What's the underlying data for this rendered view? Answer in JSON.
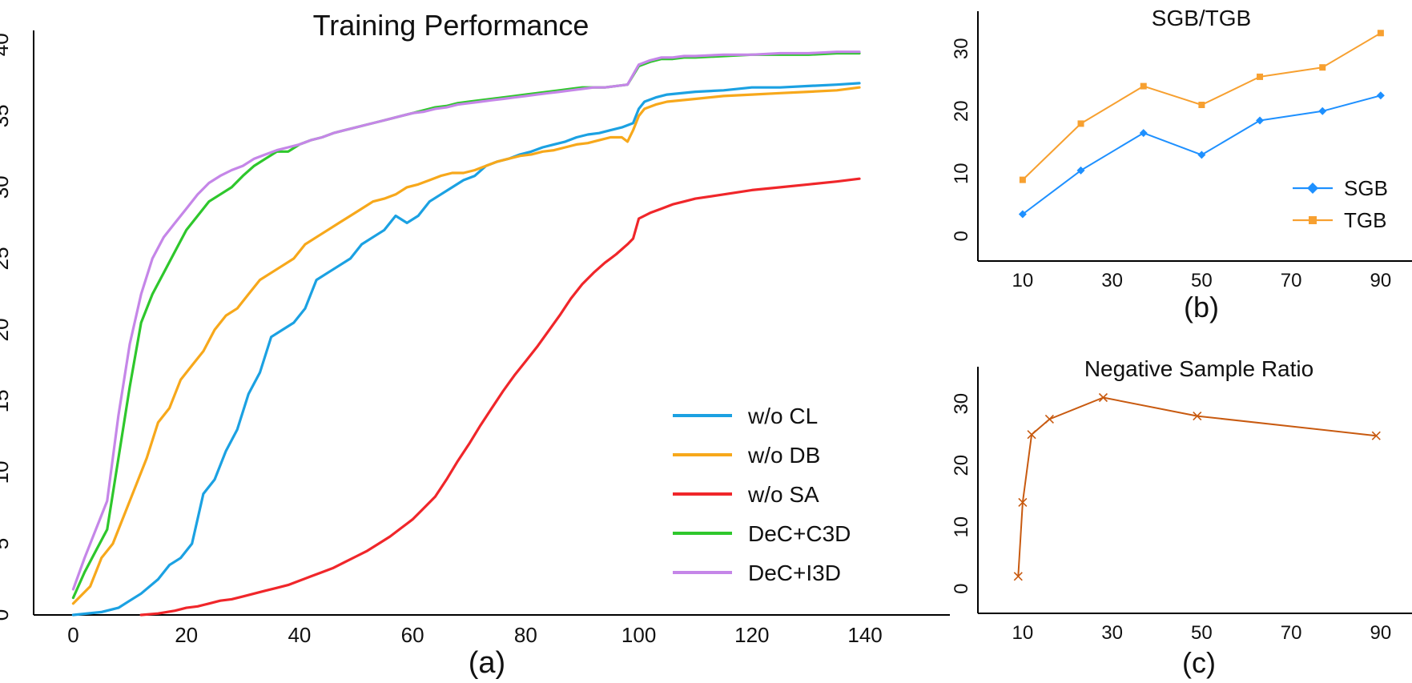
{
  "chart_data": [
    {
      "id": "a",
      "type": "line",
      "title": "Training Performance",
      "caption": "(a)",
      "xlabel": "",
      "ylabel": "",
      "xlim": [
        -7,
        155
      ],
      "ylim": [
        0,
        41
      ],
      "xticks": [
        0,
        20,
        40,
        60,
        80,
        100,
        120,
        140
      ],
      "yticks": [
        0,
        5,
        10,
        15,
        20,
        25,
        30,
        35,
        40
      ],
      "grid": false,
      "legend": "bottom-right",
      "series": [
        {
          "name": "w/o CL",
          "color": "#1ba1e2",
          "x": [
            0,
            5,
            8,
            10,
            12,
            15,
            17,
            19,
            21,
            23,
            25,
            27,
            29,
            31,
            33,
            35,
            37,
            39,
            41,
            43,
            45,
            47,
            49,
            51,
            53,
            55,
            57,
            59,
            61,
            63,
            65,
            67,
            69,
            71,
            73,
            75,
            77,
            79,
            81,
            83,
            85,
            87,
            89,
            91,
            93,
            95,
            97,
            99,
            100,
            101,
            103,
            105,
            110,
            115,
            120,
            125,
            130,
            135,
            139
          ],
          "y": [
            0,
            0.2,
            0.5,
            1,
            1.5,
            2.5,
            3.5,
            4,
            5,
            8.5,
            9.5,
            11.5,
            13,
            15.5,
            17,
            19.5,
            20,
            20.5,
            21.5,
            23.5,
            24,
            24.5,
            25,
            26,
            26.5,
            27,
            28,
            27.5,
            28,
            29,
            29.5,
            30,
            30.5,
            30.8,
            31.5,
            31.8,
            32,
            32.3,
            32.5,
            32.8,
            33,
            33.2,
            33.5,
            33.7,
            33.8,
            34,
            34.2,
            34.5,
            35.5,
            36,
            36.3,
            36.5,
            36.7,
            36.8,
            37,
            37,
            37.1,
            37.2,
            37.3
          ]
        },
        {
          "name": "w/o DB",
          "color": "#f7a81b",
          "x": [
            0,
            3,
            5,
            7,
            9,
            11,
            13,
            15,
            17,
            19,
            21,
            23,
            25,
            27,
            29,
            31,
            33,
            35,
            37,
            39,
            41,
            43,
            45,
            47,
            49,
            51,
            53,
            55,
            57,
            59,
            61,
            63,
            65,
            67,
            69,
            71,
            73,
            75,
            77,
            79,
            81,
            83,
            85,
            87,
            89,
            91,
            93,
            95,
            97,
            98,
            99,
            100,
            101,
            103,
            105,
            110,
            115,
            120,
            125,
            130,
            135,
            139
          ],
          "y": [
            0.8,
            2,
            4,
            5,
            7,
            9,
            11,
            13.5,
            14.5,
            16.5,
            17.5,
            18.5,
            20,
            21,
            21.5,
            22.5,
            23.5,
            24,
            24.5,
            25,
            26,
            26.5,
            27,
            27.5,
            28,
            28.5,
            29,
            29.2,
            29.5,
            30,
            30.2,
            30.5,
            30.8,
            31,
            31,
            31.2,
            31.5,
            31.8,
            32,
            32.2,
            32.3,
            32.5,
            32.6,
            32.8,
            33,
            33.1,
            33.3,
            33.5,
            33.5,
            33.2,
            34,
            35,
            35.5,
            35.8,
            36,
            36.2,
            36.4,
            36.5,
            36.6,
            36.7,
            36.8,
            37
          ]
        },
        {
          "name": "w/o SA",
          "color": "#f0262a",
          "x": [
            12,
            15,
            18,
            20,
            22,
            24,
            26,
            28,
            30,
            32,
            34,
            36,
            38,
            40,
            42,
            44,
            46,
            48,
            50,
            52,
            54,
            56,
            58,
            60,
            62,
            64,
            66,
            68,
            70,
            72,
            74,
            76,
            78,
            80,
            82,
            84,
            86,
            88,
            90,
            92,
            94,
            96,
            98,
            99,
            100,
            102,
            104,
            106,
            108,
            110,
            115,
            120,
            125,
            130,
            135,
            139
          ],
          "y": [
            0,
            0.1,
            0.3,
            0.5,
            0.6,
            0.8,
            1,
            1.1,
            1.3,
            1.5,
            1.7,
            1.9,
            2.1,
            2.4,
            2.7,
            3,
            3.3,
            3.7,
            4.1,
            4.5,
            5,
            5.5,
            6.1,
            6.7,
            7.5,
            8.3,
            9.5,
            10.8,
            12,
            13.3,
            14.5,
            15.7,
            16.8,
            17.8,
            18.8,
            19.9,
            21,
            22.2,
            23.2,
            24,
            24.7,
            25.3,
            26,
            26.4,
            27.8,
            28.2,
            28.5,
            28.8,
            29,
            29.2,
            29.5,
            29.8,
            30,
            30.2,
            30.4,
            30.6
          ]
        },
        {
          "name": "DeC+C3D",
          "color": "#2ec72c",
          "x": [
            0,
            2,
            4,
            6,
            8,
            10,
            12,
            14,
            16,
            18,
            20,
            22,
            24,
            26,
            28,
            30,
            32,
            34,
            36,
            38,
            40,
            42,
            44,
            46,
            48,
            50,
            52,
            54,
            56,
            58,
            60,
            62,
            64,
            66,
            68,
            70,
            72,
            74,
            76,
            78,
            80,
            82,
            84,
            86,
            88,
            90,
            92,
            94,
            96,
            98,
            100,
            102,
            104,
            106,
            108,
            110,
            115,
            120,
            125,
            130,
            135,
            139
          ],
          "y": [
            1.2,
            3,
            4.5,
            6,
            11,
            16,
            20.5,
            22.5,
            24,
            25.5,
            27,
            28,
            29,
            29.5,
            30,
            30.8,
            31.5,
            32,
            32.5,
            32.5,
            33,
            33.3,
            33.5,
            33.8,
            34,
            34.2,
            34.4,
            34.6,
            34.8,
            35,
            35.2,
            35.4,
            35.6,
            35.7,
            35.9,
            36,
            36.1,
            36.2,
            36.3,
            36.4,
            36.5,
            36.6,
            36.7,
            36.8,
            36.9,
            37,
            37,
            37,
            37.1,
            37.2,
            38.5,
            38.8,
            39,
            39,
            39.1,
            39.1,
            39.2,
            39.3,
            39.3,
            39.3,
            39.4,
            39.4
          ]
        },
        {
          "name": "DeC+I3D",
          "color": "#c586e8",
          "x": [
            0,
            2,
            4,
            6,
            8,
            10,
            12,
            14,
            16,
            18,
            20,
            22,
            24,
            26,
            28,
            30,
            32,
            34,
            36,
            38,
            40,
            42,
            44,
            46,
            48,
            50,
            52,
            54,
            56,
            58,
            60,
            62,
            64,
            66,
            68,
            70,
            72,
            74,
            76,
            78,
            80,
            82,
            84,
            86,
            88,
            90,
            92,
            94,
            96,
            98,
            100,
            102,
            104,
            106,
            108,
            110,
            115,
            120,
            125,
            130,
            135,
            139
          ],
          "y": [
            1.8,
            4,
            6,
            8,
            14,
            19,
            22.5,
            25,
            26.5,
            27.5,
            28.5,
            29.5,
            30.3,
            30.8,
            31.2,
            31.5,
            32,
            32.3,
            32.6,
            32.8,
            33,
            33.3,
            33.5,
            33.8,
            34,
            34.2,
            34.4,
            34.6,
            34.8,
            35,
            35.2,
            35.3,
            35.5,
            35.6,
            35.8,
            35.9,
            36,
            36.1,
            36.2,
            36.3,
            36.4,
            36.5,
            36.6,
            36.7,
            36.8,
            36.9,
            37,
            37,
            37.1,
            37.2,
            38.6,
            38.9,
            39.1,
            39.1,
            39.2,
            39.2,
            39.3,
            39.3,
            39.4,
            39.4,
            39.5,
            39.5
          ]
        }
      ]
    },
    {
      "id": "b",
      "type": "line",
      "title": "SGB/TGB",
      "caption": "(b)",
      "xlabel": "",
      "ylabel": "",
      "xlim": [
        0,
        97
      ],
      "ylim": [
        -4,
        36
      ],
      "xticks": [
        10,
        30,
        50,
        70,
        90
      ],
      "yticks": [
        0,
        10,
        20,
        30
      ],
      "grid": false,
      "legend": "right",
      "series": [
        {
          "name": "SGB",
          "color": "#1e90ff",
          "marker": "diamond",
          "x": [
            10,
            23,
            37,
            50,
            63,
            77,
            90
          ],
          "y": [
            3.5,
            10.5,
            16.5,
            13,
            18.5,
            20,
            22.5
          ]
        },
        {
          "name": "TGB",
          "color": "#f7a030",
          "marker": "square",
          "x": [
            10,
            23,
            37,
            50,
            63,
            77,
            90
          ],
          "y": [
            9,
            18,
            24,
            21,
            25.5,
            27,
            32.5
          ]
        }
      ]
    },
    {
      "id": "c",
      "type": "line",
      "title": "Negative Sample Ratio",
      "caption": "(c)",
      "xlabel": "",
      "ylabel": "",
      "xlim": [
        0,
        97
      ],
      "ylim": [
        -4,
        36
      ],
      "xticks": [
        10,
        30,
        50,
        70,
        90
      ],
      "yticks": [
        0,
        10,
        20,
        30
      ],
      "grid": false,
      "legend": "none",
      "series": [
        {
          "name": "Negative Sample Ratio",
          "color": "#c85a10",
          "marker": "x",
          "x": [
            9,
            10,
            12,
            16,
            28,
            49,
            89
          ],
          "y": [
            2,
            14,
            25,
            27.5,
            31,
            28,
            24.8
          ]
        }
      ]
    }
  ]
}
